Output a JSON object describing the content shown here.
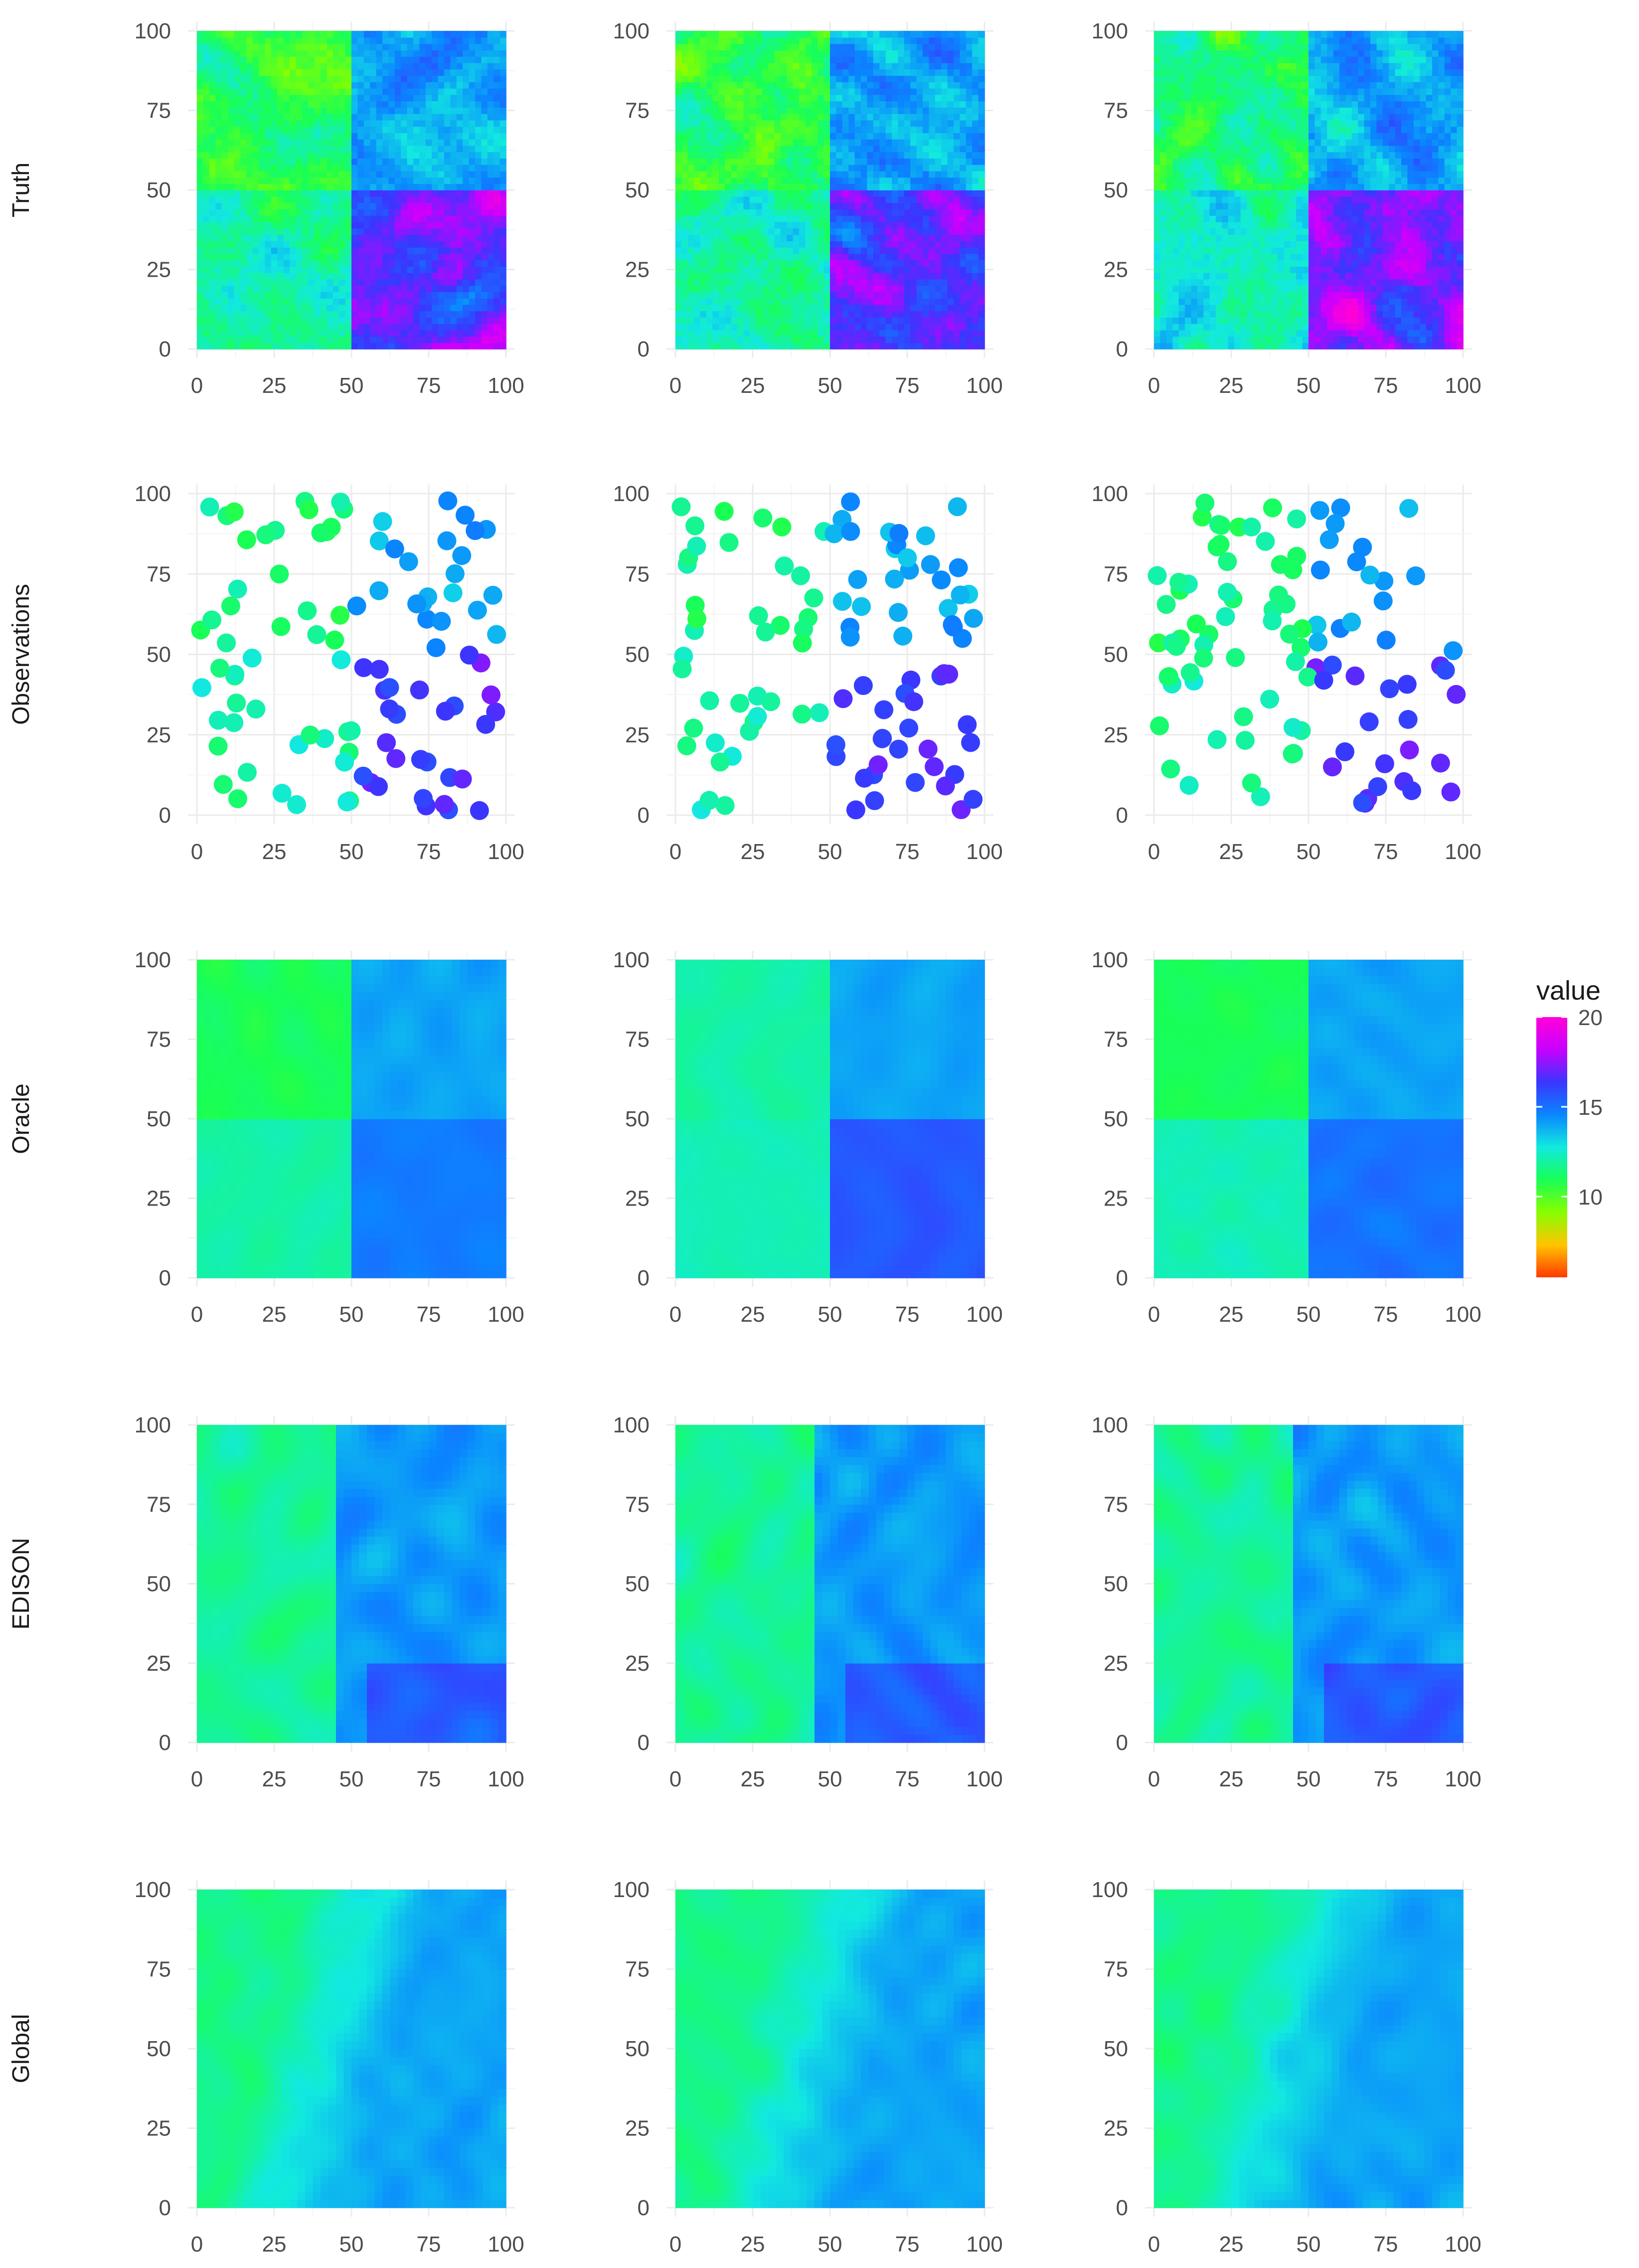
{
  "figure": {
    "row_labels": [
      "Truth",
      "Observations",
      "Oracle",
      "EDISON",
      "Global"
    ],
    "x_ticks": [
      0,
      25,
      50,
      75,
      100
    ],
    "y_ticks": [
      0,
      25,
      50,
      75,
      100
    ],
    "x_range": [
      0,
      100
    ],
    "y_range": [
      0,
      100
    ],
    "legend": {
      "title": "value",
      "ticks": [
        10,
        15,
        20
      ],
      "min": 5.5,
      "max": 20,
      "colors": [
        "#ff3a00",
        "#ffc400",
        "#86ff00",
        "#18ff55",
        "#12e9e0",
        "#0a86ff",
        "#3a36ff",
        "#c800ff",
        "#ff00d8"
      ]
    }
  },
  "chart_data": [
    {
      "type": "heatmap",
      "row": "Truth",
      "col": 1,
      "quadrants": {
        "top_left": 11.0,
        "top_right": 14.0,
        "bottom_left": 12.0,
        "bottom_right": 16.5
      }
    },
    {
      "type": "heatmap",
      "row": "Truth",
      "col": 2,
      "quadrants": {
        "top_left": 11.0,
        "top_right": 14.0,
        "bottom_left": 12.0,
        "bottom_right": 16.5
      }
    },
    {
      "type": "heatmap",
      "row": "Truth",
      "col": 3,
      "quadrants": {
        "top_left": 11.5,
        "top_right": 14.0,
        "bottom_left": 12.5,
        "bottom_right": 17.0
      }
    },
    {
      "type": "scatter",
      "row": "Observations",
      "col": 1,
      "n_points": 100
    },
    {
      "type": "scatter",
      "row": "Observations",
      "col": 2,
      "n_points": 100
    },
    {
      "type": "scatter",
      "row": "Observations",
      "col": 3,
      "n_points": 100
    },
    {
      "type": "heatmap",
      "row": "Oracle",
      "col": 1,
      "quadrants": {
        "top_left": 11.0,
        "top_right": 14.0,
        "bottom_left": 12.0,
        "bottom_right": 14.8
      }
    },
    {
      "type": "heatmap",
      "row": "Oracle",
      "col": 2,
      "quadrants": {
        "top_left": 12.0,
        "top_right": 14.0,
        "bottom_left": 12.2,
        "bottom_right": 15.6
      }
    },
    {
      "type": "heatmap",
      "row": "Oracle",
      "col": 3,
      "quadrants": {
        "top_left": 11.0,
        "top_right": 14.0,
        "bottom_left": 12.2,
        "bottom_right": 15.0
      }
    },
    {
      "type": "heatmap",
      "row": "EDISON",
      "col": 1,
      "description": "region-wise estimate"
    },
    {
      "type": "heatmap",
      "row": "EDISON",
      "col": 2,
      "description": "region-wise estimate"
    },
    {
      "type": "heatmap",
      "row": "EDISON",
      "col": 3,
      "description": "region-wise estimate"
    },
    {
      "type": "heatmap",
      "row": "Global",
      "col": 1,
      "description": "smooth global estimate"
    },
    {
      "type": "heatmap",
      "row": "Global",
      "col": 2,
      "description": "smooth global estimate"
    },
    {
      "type": "heatmap",
      "row": "Global",
      "col": 3,
      "description": "smooth global estimate"
    }
  ]
}
